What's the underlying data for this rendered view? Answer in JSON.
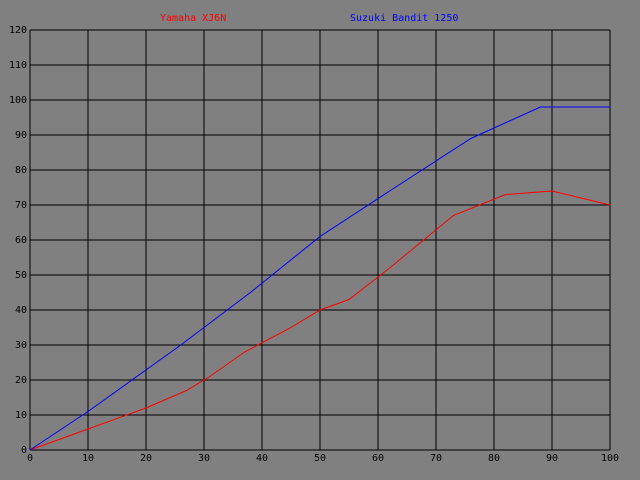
{
  "chart_data": {
    "type": "line",
    "series": [
      {
        "name": "Yamaha XJ6N",
        "color": "#ff0000",
        "x": [
          0,
          10,
          20,
          27,
          31,
          37,
          45,
          50,
          55,
          62,
          73,
          82,
          90,
          100
        ],
        "values": [
          0,
          6,
          12,
          17,
          21,
          28,
          35,
          40,
          43,
          52,
          67,
          73,
          74,
          70
        ]
      },
      {
        "name": "Suzuki Bandit 1250",
        "color": "#0000ff",
        "x": [
          0,
          10,
          26,
          38,
          50,
          62,
          76,
          88,
          100
        ],
        "values": [
          0,
          11,
          30,
          45,
          61,
          74,
          89,
          98,
          98
        ]
      }
    ],
    "xlim": [
      0,
      100
    ],
    "xticks": [
      0,
      10,
      20,
      30,
      40,
      50,
      60,
      70,
      80,
      90,
      100
    ],
    "ylim": [
      0,
      120
    ],
    "yticks": [
      0,
      10,
      20,
      30,
      40,
      50,
      60,
      70,
      80,
      90,
      100,
      110,
      120
    ],
    "grid": true
  }
}
